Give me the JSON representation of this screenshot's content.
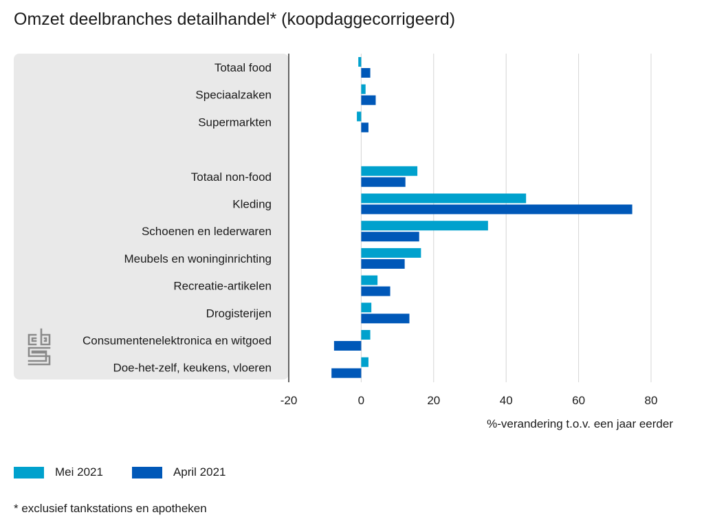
{
  "title": "Omzet deelbranches detailhandel* (koopdaggecorrigeerd)",
  "footnote": "* exclusief tankstations en apotheken",
  "colors": {
    "mei": "#00a1cd",
    "april": "#0058b8",
    "panel": "#e9e9e9",
    "grid": "#d4d4d4",
    "axis": "#333333",
    "logo": "#8a8a8a"
  },
  "legend": {
    "series_1": "Mei 2021",
    "series_2": "April 2021"
  },
  "logo": "cbs-logo-icon",
  "chart_data": {
    "type": "bar",
    "orientation": "horizontal",
    "title": "Omzet deelbranches detailhandel* (koopdaggecorrigeerd)",
    "xlabel": "%-verandering t.o.v. een jaar eerder",
    "ylabel": "",
    "xlim": [
      -20,
      80
    ],
    "xticks": [
      -20,
      0,
      20,
      40,
      60,
      80
    ],
    "grid": true,
    "legend_position": "bottom-left",
    "categories": [
      "Totaal food",
      "Speciaalzaken",
      "Supermarkten",
      "",
      "Totaal non-food",
      "Kleding",
      "Schoenen en lederwaren",
      "Meubels en woninginrichting",
      "Recreatie-artikelen",
      "Drogisterijen",
      "Consumentenelektronica en witgoed",
      "Doe-het-zelf, keukens, vloeren"
    ],
    "series": [
      {
        "name": "Mei 2021",
        "values": [
          -0.8,
          1.2,
          -1.2,
          null,
          15.5,
          45.5,
          35.0,
          16.5,
          4.5,
          2.8,
          2.5,
          2.0
        ]
      },
      {
        "name": "April 2021",
        "values": [
          2.5,
          4.0,
          2.0,
          null,
          12.2,
          74.8,
          16.0,
          12.0,
          8.0,
          13.3,
          -7.5,
          -8.2
        ]
      }
    ]
  }
}
